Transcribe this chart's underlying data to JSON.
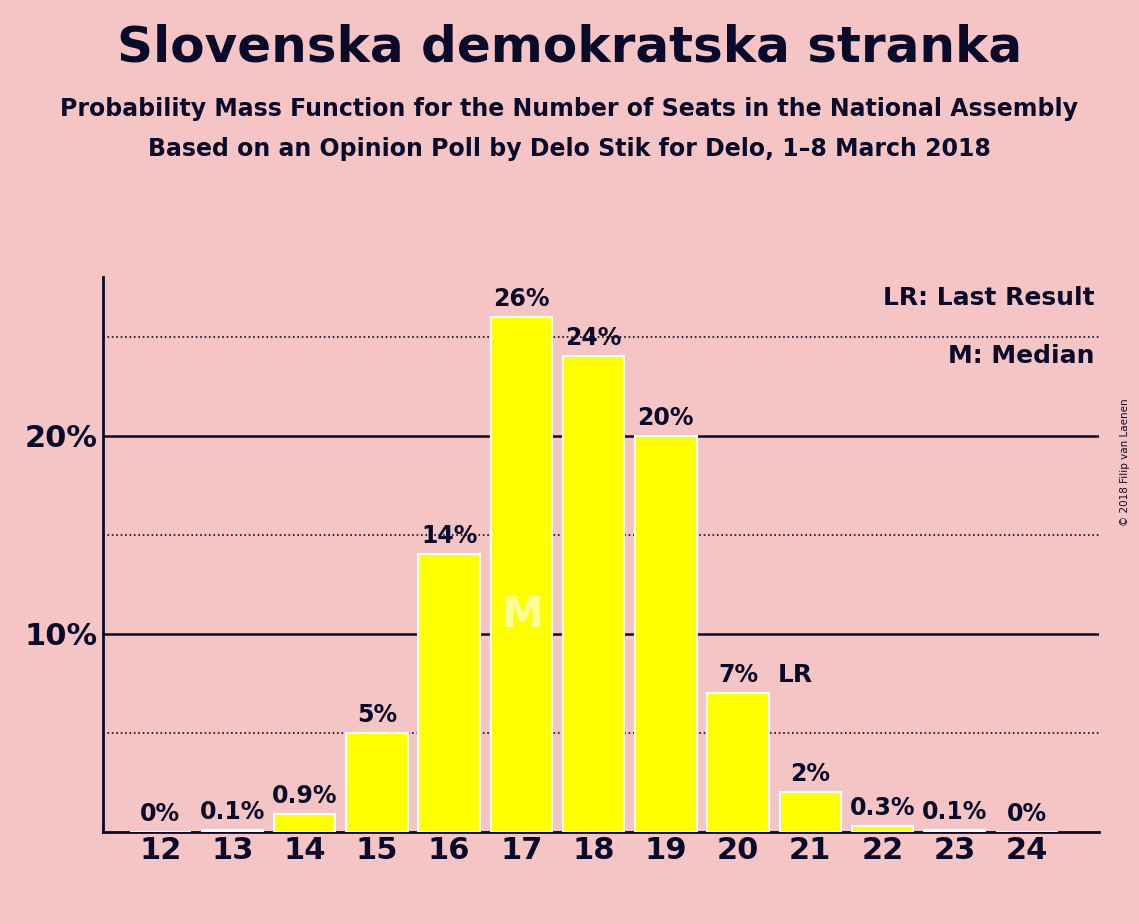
{
  "title": "Slovenska demokratska stranka",
  "subtitle1": "Probability Mass Function for the Number of Seats in the National Assembly",
  "subtitle2": "Based on an Opinion Poll by Delo Stik for Delo, 1–8 March 2018",
  "copyright": "© 2018 Filip van Laenen",
  "seats": [
    12,
    13,
    14,
    15,
    16,
    17,
    18,
    19,
    20,
    21,
    22,
    23,
    24
  ],
  "probabilities": [
    0.0,
    0.1,
    0.9,
    5.0,
    14.0,
    26.0,
    24.0,
    20.0,
    7.0,
    2.0,
    0.3,
    0.1,
    0.0
  ],
  "labels": [
    "0%",
    "0.1%",
    "0.9%",
    "5%",
    "14%",
    "26%",
    "24%",
    "20%",
    "7%",
    "2%",
    "0.3%",
    "0.1%",
    "0%"
  ],
  "bar_color": "#FFFF00",
  "bar_edge_color": "#FFFFFF",
  "background_color": "#F5C5C5",
  "text_color": "#0A0A2A",
  "median_seat": 17,
  "lr_seat": 20,
  "hlines_solid": [
    10.0,
    20.0
  ],
  "hlines_dotted": [
    5.0,
    15.0,
    25.0
  ],
  "ylim": [
    0,
    28
  ],
  "title_fontsize": 36,
  "subtitle_fontsize": 17,
  "axis_label_fontsize": 22,
  "bar_label_fontsize": 17,
  "legend_fontsize": 18,
  "median_label_color": "#FFFF99",
  "bar_width": 0.85
}
